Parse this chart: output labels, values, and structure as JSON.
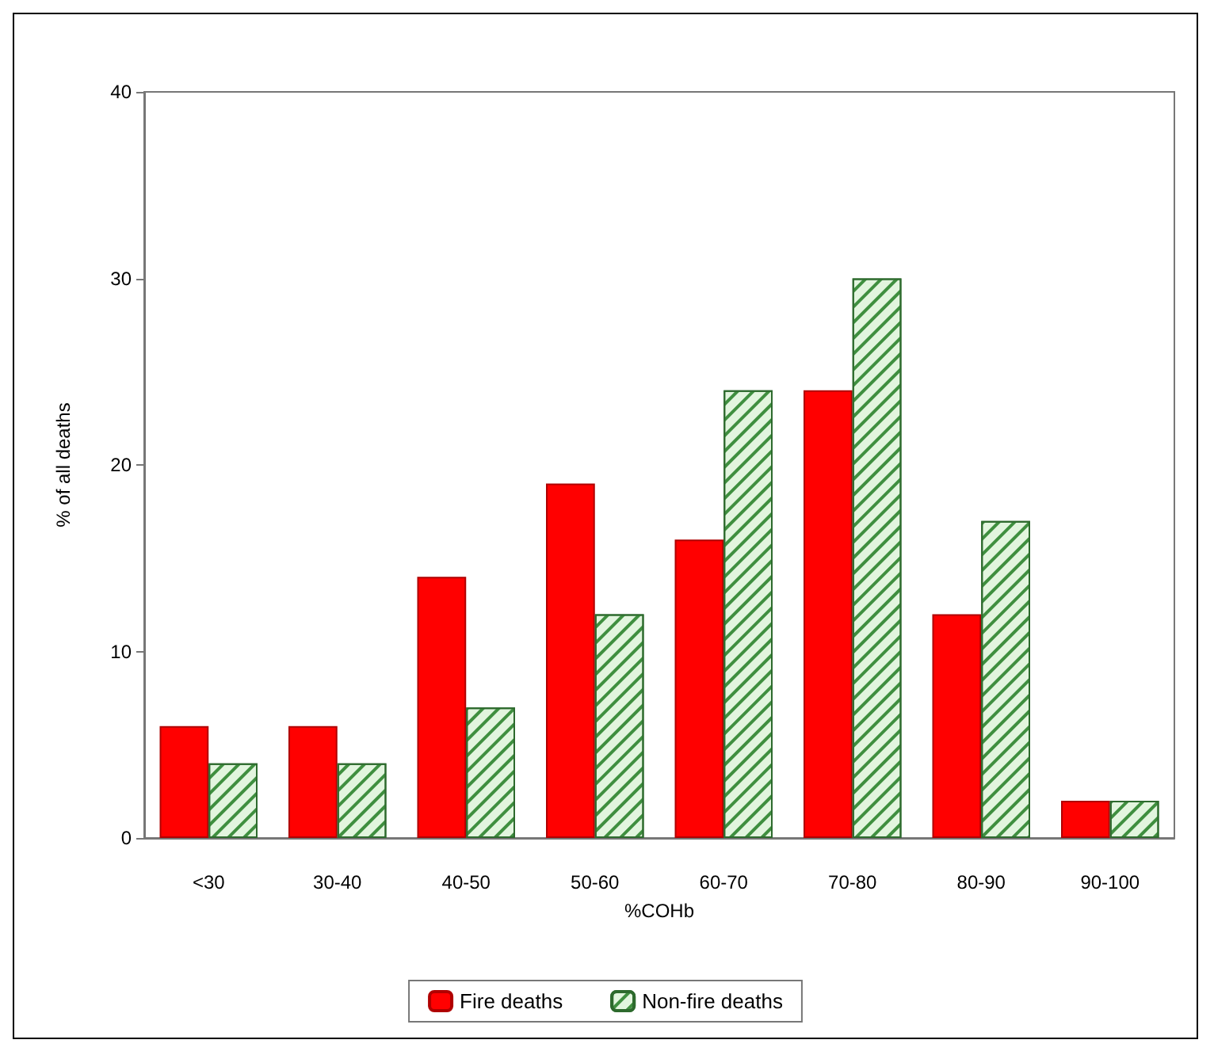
{
  "chart_data": {
    "type": "bar",
    "xlabel": "%COHb",
    "ylabel": "% of all deaths",
    "categories": [
      "<30",
      "30-40",
      "40-50",
      "50-60",
      "60-70",
      "70-80",
      "80-90",
      "90-100"
    ],
    "series": [
      {
        "name": "Fire deaths",
        "color": "#ff0000",
        "values": [
          6,
          6,
          14,
          19,
          16,
          24,
          12,
          2
        ]
      },
      {
        "name": "Non-fire deaths",
        "color": "#e2f5de",
        "values": [
          4,
          4,
          7,
          12,
          24,
          30,
          17,
          2
        ]
      }
    ],
    "ylim": [
      0,
      40
    ],
    "yticks": [
      0,
      10,
      20,
      30,
      40
    ],
    "grid": false,
    "legend": "bottom"
  }
}
